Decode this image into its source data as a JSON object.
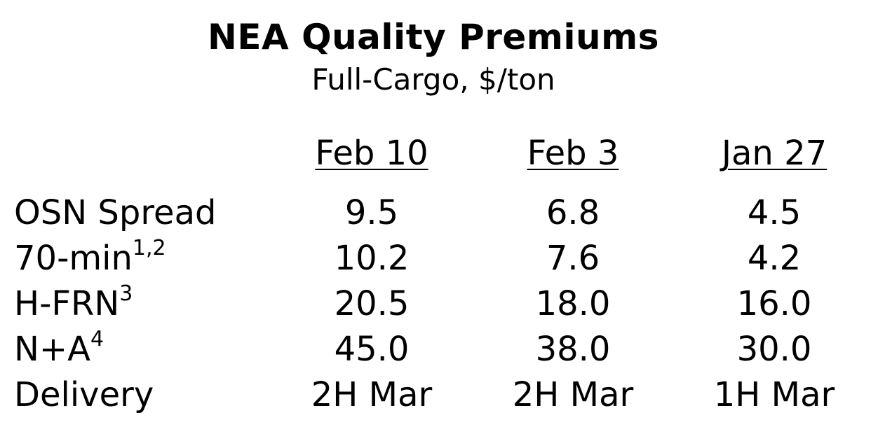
{
  "title": "NEA Quality Premiums",
  "subtitle": "Full-Cargo, $/ton",
  "columns": [
    "Feb 10",
    "Feb 3",
    "Jan 27"
  ],
  "rows": [
    {
      "label": "OSN Spread",
      "sup": "",
      "values": [
        "9.5",
        "6.8",
        "4.5"
      ]
    },
    {
      "label": "70-min",
      "sup": "1,2",
      "values": [
        "10.2",
        "7.6",
        "4.2"
      ]
    },
    {
      "label": "H-FRN",
      "sup": "3",
      "values": [
        "20.5",
        "18.0",
        "16.0"
      ]
    },
    {
      "label": "N+A",
      "sup": "4",
      "values": [
        "45.0",
        "38.0",
        "30.0"
      ]
    },
    {
      "label": "Delivery",
      "sup": "",
      "values": [
        "2H Mar",
        "2H Mar",
        "1H Mar"
      ]
    }
  ]
}
